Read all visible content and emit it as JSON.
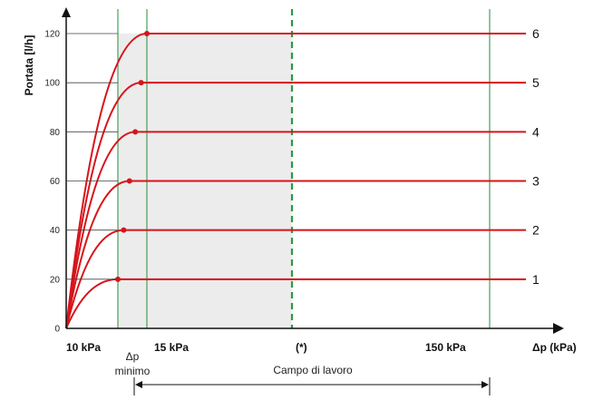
{
  "chart_data": {
    "type": "line",
    "ylabel": "Portata [l/h]",
    "xlabel": "Δp (kPa)",
    "yticks": [
      0,
      20,
      40,
      60,
      80,
      100,
      120
    ],
    "ylim": [
      0,
      120
    ],
    "x_markers": [
      "10 kPa",
      "15 kPa",
      "(*)",
      "150 kPa"
    ],
    "series": [
      {
        "name": "1",
        "value": 20
      },
      {
        "name": "2",
        "value": 40
      },
      {
        "name": "3",
        "value": 60
      },
      {
        "name": "4",
        "value": 80
      },
      {
        "name": "5",
        "value": 100
      },
      {
        "name": "6",
        "value": 120
      }
    ],
    "annotations": {
      "dp_min_line1": "Δp",
      "dp_min_line2": "minimo",
      "working_range": "Campo di lavoro"
    },
    "colors": {
      "curve": "#d7141a",
      "green": "#1f8f3a",
      "dashed": "#2a9a48",
      "shade": "#ececec",
      "axis": "#111111"
    }
  }
}
